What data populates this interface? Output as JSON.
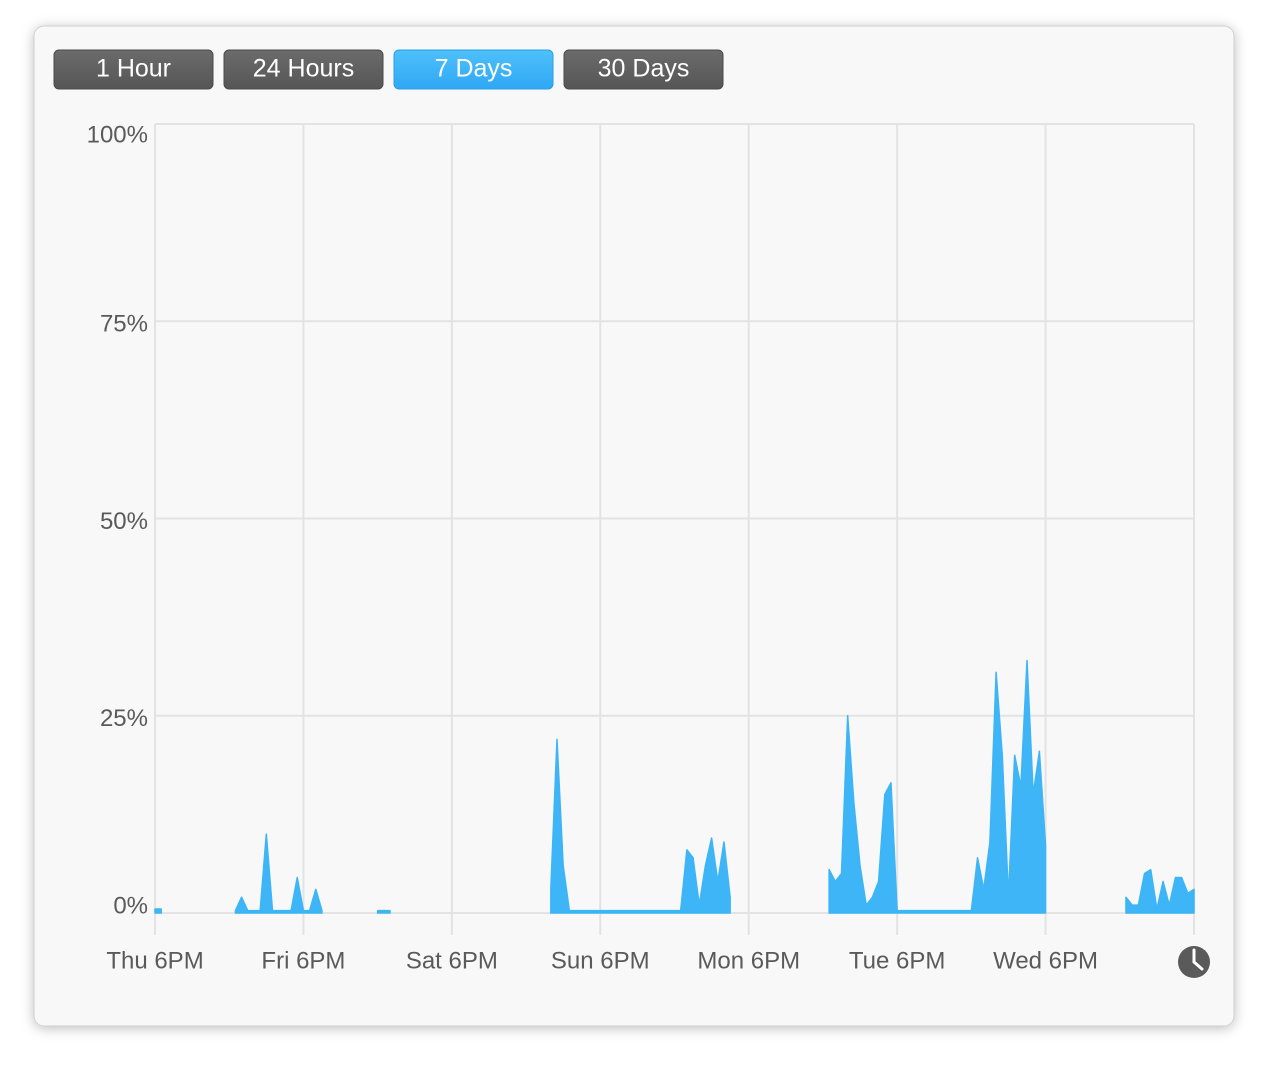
{
  "controls": {
    "buttons": [
      "1 Hour",
      "24 Hours",
      "7 Days",
      "30 Days"
    ],
    "selected": 2
  },
  "chart_data": {
    "type": "area",
    "color": "#3db5f6",
    "grid": true,
    "ylim": [
      0,
      100
    ],
    "yticks": [
      {
        "value": 0,
        "label": "0%"
      },
      {
        "value": 25,
        "label": "25%"
      },
      {
        "value": 50,
        "label": "50%"
      },
      {
        "value": 75,
        "label": "75%"
      },
      {
        "value": 100,
        "label": "100%"
      }
    ],
    "categories": [
      "Thu 6PM",
      null,
      null,
      null,
      null,
      null,
      null,
      null,
      null,
      null,
      null,
      null,
      null,
      null,
      null,
      null,
      null,
      null,
      null,
      null,
      null,
      null,
      null,
      null,
      "Fri 6PM",
      null,
      null,
      null,
      null,
      null,
      null,
      null,
      null,
      null,
      null,
      null,
      null,
      null,
      null,
      null,
      null,
      null,
      null,
      null,
      null,
      null,
      null,
      null,
      "Sat 6PM",
      null,
      null,
      null,
      null,
      null,
      null,
      null,
      null,
      null,
      null,
      null,
      null,
      null,
      null,
      null,
      null,
      null,
      null,
      null,
      null,
      null,
      null,
      null,
      "Sun 6PM",
      null,
      null,
      null,
      null,
      null,
      null,
      null,
      null,
      null,
      null,
      null,
      null,
      null,
      null,
      null,
      null,
      null,
      null,
      null,
      null,
      null,
      null,
      null,
      "Mon 6PM",
      null,
      null,
      null,
      null,
      null,
      null,
      null,
      null,
      null,
      null,
      null,
      null,
      null,
      null,
      null,
      null,
      null,
      null,
      null,
      null,
      null,
      null,
      null,
      "Tue 6PM",
      null,
      null,
      null,
      null,
      null,
      null,
      null,
      null,
      null,
      null,
      null,
      null,
      null,
      null,
      null,
      null,
      null,
      null,
      null,
      null,
      null,
      null,
      null,
      "Wed 6PM",
      null,
      null,
      null,
      null,
      null,
      null,
      null,
      null,
      null,
      null,
      null,
      null,
      null,
      null,
      null,
      null,
      null,
      null,
      null,
      null,
      null,
      null,
      null,
      null
    ],
    "values": [
      0.5,
      0.5,
      null,
      null,
      null,
      null,
      null,
      null,
      null,
      null,
      null,
      null,
      null,
      0.3,
      2,
      0.3,
      0.3,
      0.3,
      10,
      0.3,
      0.3,
      0.3,
      0.3,
      4.5,
      0.3,
      0.3,
      3,
      0.3,
      null,
      null,
      null,
      null,
      null,
      null,
      null,
      null,
      0.3,
      0.3,
      0.3,
      null,
      null,
      null,
      null,
      null,
      null,
      null,
      null,
      null,
      null,
      null,
      null,
      null,
      null,
      null,
      null,
      null,
      null,
      null,
      null,
      null,
      null,
      null,
      null,
      null,
      3,
      22,
      6,
      0.3,
      0.3,
      0.3,
      0.3,
      0.3,
      0.3,
      0.3,
      0.3,
      0.3,
      0.3,
      0.3,
      0.3,
      0.3,
      0.3,
      0.3,
      0.3,
      0.3,
      0.3,
      0.3,
      8,
      7,
      1,
      6,
      9.5,
      4,
      9,
      2,
      null,
      null,
      null,
      null,
      null,
      null,
      null,
      null,
      null,
      null,
      null,
      null,
      null,
      null,
      null,
      5.5,
      4,
      5,
      25,
      14,
      6,
      1,
      2,
      4,
      15,
      16.5,
      0.3,
      0.3,
      0.3,
      0.3,
      0.3,
      0.3,
      0.3,
      0.3,
      0.3,
      0.3,
      0.3,
      0.3,
      0.3,
      7,
      3,
      9,
      30.5,
      20,
      2,
      20,
      16,
      32,
      15,
      20.5,
      8.5,
      null,
      null,
      null,
      null,
      null,
      null,
      null,
      null,
      null,
      null,
      null,
      null,
      2,
      1,
      1,
      5,
      5.5,
      0.5,
      4,
      1,
      4.5,
      4.5,
      2.5,
      3
    ]
  }
}
